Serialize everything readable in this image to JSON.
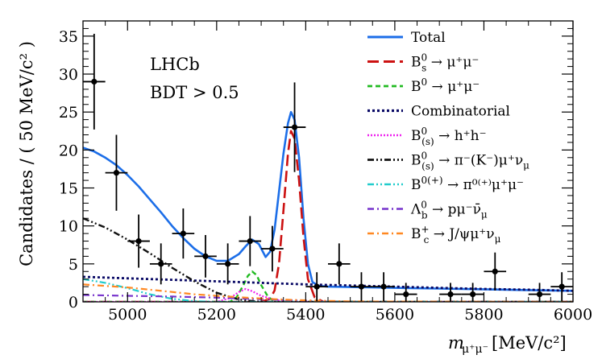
{
  "chart_data": {
    "type": "line",
    "title": "",
    "xlabel_main": "m",
    "xlabel_sub": "μ⁺μ⁻",
    "xlabel_unit": "[MeV/c²]",
    "ylabel": "Candidates / ( 50 MeV/c² )",
    "xlim": [
      4900,
      6000
    ],
    "ylim": [
      0,
      37
    ],
    "xticks": [
      5000,
      5200,
      5400,
      5600,
      5800,
      6000
    ],
    "yticks": [
      0,
      5,
      10,
      15,
      20,
      25,
      30,
      35
    ],
    "annotations": [
      "LHCb",
      "BDT > 0.5"
    ],
    "legend_position": "top-right",
    "data_points": {
      "name": "Data",
      "x": [
        4925,
        4975,
        5025,
        5075,
        5125,
        5175,
        5225,
        5275,
        5325,
        5375,
        5425,
        5475,
        5525,
        5575,
        5625,
        5725,
        5775,
        5825,
        5925,
        5975
      ],
      "y": [
        29,
        17,
        8,
        5,
        9,
        6,
        5,
        8,
        7,
        23,
        2,
        5,
        2,
        2,
        1,
        1,
        1,
        4,
        1,
        2
      ],
      "yerr": [
        6.3,
        5.0,
        3.5,
        2.7,
        3.3,
        2.8,
        2.7,
        3.3,
        3.0,
        5.9,
        1.9,
        2.7,
        1.9,
        1.9,
        1.5,
        1.5,
        1.5,
        2.5,
        1.5,
        1.9
      ]
    },
    "series": [
      {
        "name": "Total",
        "legend_label": "Total",
        "color": "#1c6ee8",
        "dash": "",
        "width": 2.6,
        "x": [
          4900,
          4925,
          4950,
          4975,
          5000,
          5025,
          5050,
          5075,
          5100,
          5125,
          5150,
          5175,
          5200,
          5225,
          5250,
          5265,
          5280,
          5295,
          5310,
          5320,
          5330,
          5340,
          5350,
          5360,
          5367,
          5375,
          5385,
          5395,
          5405,
          5415,
          5430,
          5450,
          5500,
          5600,
          5700,
          5800,
          5900,
          6000
        ],
        "y": [
          20.3,
          19.8,
          19.0,
          18.0,
          16.7,
          15.2,
          13.5,
          11.8,
          10.0,
          8.4,
          7.0,
          6.0,
          5.4,
          5.4,
          6.3,
          7.3,
          8.2,
          7.6,
          5.9,
          6.6,
          9.5,
          14.5,
          19.5,
          23.5,
          25.0,
          24.0,
          19.0,
          11.0,
          5.0,
          2.6,
          2.1,
          2.0,
          1.95,
          1.85,
          1.75,
          1.65,
          1.55,
          1.45
        ]
      },
      {
        "name": "Bs",
        "legend_label": "B",
        "legend_sup": "0",
        "legend_sub": "s",
        "legend_rest": " → μ⁺μ⁻",
        "color": "#cc1111",
        "dash": "14,6",
        "width": 2.6,
        "x": [
          4900,
          5300,
          5320,
          5330,
          5340,
          5350,
          5360,
          5367,
          5375,
          5385,
          5395,
          5405,
          5420,
          5440,
          6000
        ],
        "y": [
          0,
          0,
          0.4,
          1.5,
          5.0,
          12.0,
          19.5,
          22.5,
          21.5,
          16.0,
          8.5,
          3.0,
          0.6,
          0,
          0
        ]
      },
      {
        "name": "B0",
        "legend_label": "B",
        "legend_sup": "0",
        "legend_sub": "",
        "legend_rest": " → μ⁺μ⁻",
        "color": "#22bb22",
        "dash": "6,4",
        "width": 2.4,
        "x": [
          4900,
          5230,
          5245,
          5260,
          5270,
          5280,
          5290,
          5300,
          5315,
          5330,
          6000
        ],
        "y": [
          0,
          0,
          0.6,
          2.2,
          3.4,
          4.0,
          3.5,
          2.2,
          0.7,
          0,
          0
        ]
      },
      {
        "name": "Combinatorial",
        "legend_label": "Combinatorial",
        "legend_sup": "",
        "legend_sub": "",
        "legend_rest": "",
        "color": "#0a0a66",
        "dash": "3,3",
        "width": 2.8,
        "x": [
          4900,
          5000,
          5100,
          5200,
          5300,
          5400,
          5500,
          5600,
          5700,
          5800,
          5900,
          6000
        ],
        "y": [
          3.3,
          3.1,
          2.9,
          2.7,
          2.5,
          2.3,
          2.15,
          2.0,
          1.85,
          1.7,
          1.6,
          1.45
        ]
      },
      {
        "name": "Bhh",
        "legend_label": "B",
        "legend_sup": "0",
        "legend_sub": "(s)",
        "legend_rest": " → h⁺h⁻",
        "color": "#ee22ee",
        "dash": "2,2",
        "width": 2.2,
        "x": [
          4900,
          5200,
          5230,
          5250,
          5265,
          5280,
          5300,
          5330,
          5360,
          6000
        ],
        "y": [
          0,
          0,
          0.5,
          1.3,
          1.7,
          1.4,
          0.8,
          0.3,
          0,
          0
        ]
      },
      {
        "name": "BpiKmunu",
        "legend_label": "B",
        "legend_sup": "0",
        "legend_sub": "(s)",
        "legend_rest": " → π⁻(K⁻)μ⁺ν",
        "legend_rest_sub": "μ",
        "color": "#111111",
        "dash": "8,3,2,3,2,3",
        "width": 2.4,
        "x": [
          4900,
          4950,
          5000,
          5050,
          5100,
          5150,
          5200,
          5250,
          5300,
          6000
        ],
        "y": [
          11.0,
          9.8,
          8.2,
          6.4,
          4.5,
          2.7,
          1.2,
          0.3,
          0,
          0
        ]
      },
      {
        "name": "Bpimumu",
        "legend_label": "B",
        "legend_sup": "0(+)",
        "legend_sub": "",
        "legend_rest": " → π⁰⁽⁺⁾μ⁺μ⁻",
        "color": "#22cccc",
        "dash": "8,3,2,3,2,3",
        "width": 2.2,
        "x": [
          4900,
          4950,
          5000,
          5050,
          5100,
          5150,
          5200,
          6000
        ],
        "y": [
          3.0,
          2.5,
          1.8,
          1.0,
          0.4,
          0.1,
          0,
          0
        ]
      },
      {
        "name": "Lambdab",
        "legend_label": "Λ",
        "legend_sup": "0",
        "legend_sub": "b",
        "legend_rest": " → pμ⁻ν̄",
        "legend_rest_sub": "μ",
        "color": "#7733cc",
        "dash": "8,4,2,4",
        "width": 2.2,
        "x": [
          4900,
          5000,
          5100,
          5200,
          5300,
          5400,
          5500,
          6000
        ],
        "y": [
          0.9,
          0.8,
          0.7,
          0.55,
          0.35,
          0.15,
          0,
          0
        ]
      },
      {
        "name": "Bc",
        "legend_label": "B",
        "legend_sup": "+",
        "legend_sub": "c",
        "legend_rest": " → J/ψμ⁺ν",
        "legend_rest_sub": "μ",
        "color": "#ff8822",
        "dash": "8,4,2,4",
        "width": 2.2,
        "x": [
          4900,
          4950,
          5000,
          5050,
          5100,
          5150,
          5200,
          5250,
          5300,
          5350,
          5400,
          5500,
          6000
        ],
        "y": [
          2.3,
          2.1,
          1.9,
          1.6,
          1.3,
          1.0,
          0.8,
          0.6,
          0.45,
          0.3,
          0.2,
          0.05,
          0
        ]
      }
    ]
  }
}
